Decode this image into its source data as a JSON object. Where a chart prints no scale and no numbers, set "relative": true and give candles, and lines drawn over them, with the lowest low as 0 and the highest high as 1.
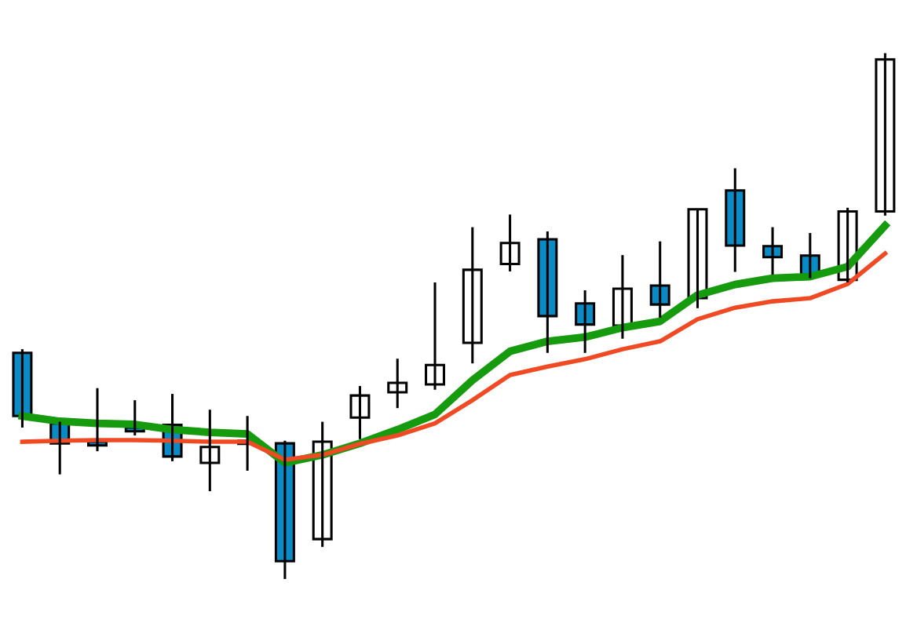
{
  "chart_data": {
    "type": "candlestick",
    "relative": true,
    "categories": [
      null,
      null,
      null,
      null,
      null,
      null,
      null,
      null,
      null,
      null,
      null,
      null,
      null,
      null,
      null,
      null,
      null,
      null,
      null,
      null,
      null,
      null,
      null,
      null
    ],
    "ohlc": [
      [
        0.43,
        0.437,
        0.288,
        0.31
      ],
      [
        0.296,
        0.299,
        0.199,
        0.258
      ],
      [
        0.261,
        0.363,
        0.243,
        0.254
      ],
      [
        0.288,
        0.34,
        0.273,
        0.281
      ],
      [
        0.293,
        0.352,
        0.224,
        0.233
      ],
      [
        0.221,
        0.322,
        0.167,
        0.251
      ],
      [
        0.257,
        0.31,
        0.206,
        0.263
      ],
      [
        0.258,
        0.263,
        0.0,
        0.034
      ],
      [
        0.076,
        0.299,
        0.061,
        0.261
      ],
      [
        0.307,
        0.367,
        0.266,
        0.349
      ],
      [
        0.355,
        0.419,
        0.325,
        0.373
      ],
      [
        0.37,
        0.564,
        0.36,
        0.407
      ],
      [
        0.449,
        0.669,
        0.41,
        0.588
      ],
      [
        0.599,
        0.693,
        0.585,
        0.639
      ],
      [
        0.646,
        0.661,
        0.43,
        0.5
      ],
      [
        0.524,
        0.549,
        0.43,
        0.484
      ],
      [
        0.482,
        0.616,
        0.457,
        0.552
      ],
      [
        0.558,
        0.642,
        0.497,
        0.522
      ],
      [
        0.534,
        0.703,
        0.515,
        0.703
      ],
      [
        0.739,
        0.781,
        0.584,
        0.634
      ],
      [
        0.633,
        0.669,
        0.579,
        0.612
      ],
      [
        0.615,
        0.658,
        0.572,
        0.579
      ],
      [
        0.569,
        0.706,
        0.564,
        0.699
      ],
      [
        0.699,
        1.0,
        0.691,
        0.988
      ]
    ],
    "colors": [
      "#0b8bc6",
      "#0b8bc6",
      "#0b8bc6",
      "#0b8bc6",
      "#0b8bc6",
      "#ffffff",
      "#ffffff",
      "#0b8bc6",
      "#ffffff",
      "#ffffff",
      "#ffffff",
      "#ffffff",
      "#ffffff",
      "#ffffff",
      "#0b8bc6",
      "#0b8bc6",
      "#ffffff",
      "#0b8bc6",
      "#ffffff",
      "#0b8bc6",
      "#0b8bc6",
      "#0b8bc6",
      "#ffffff",
      "#ffffff"
    ],
    "series": [
      {
        "type": "line",
        "color": "#169a0e",
        "values": [
          0.31,
          0.3,
          0.296,
          0.294,
          0.284,
          0.279,
          0.276,
          0.221,
          0.236,
          0.258,
          0.284,
          0.313,
          0.378,
          0.433,
          0.452,
          0.46,
          0.478,
          0.49,
          0.54,
          0.56,
          0.572,
          0.575,
          0.594,
          0.672
        ]
      },
      {
        "type": "line",
        "color": "#f04a24",
        "values": [
          0.261,
          0.263,
          0.264,
          0.264,
          0.263,
          0.261,
          0.261,
          0.227,
          0.236,
          0.257,
          0.273,
          0.296,
          0.34,
          0.388,
          0.404,
          0.418,
          0.437,
          0.452,
          0.494,
          0.516,
          0.528,
          0.534,
          0.561,
          0.619
        ]
      }
    ]
  }
}
